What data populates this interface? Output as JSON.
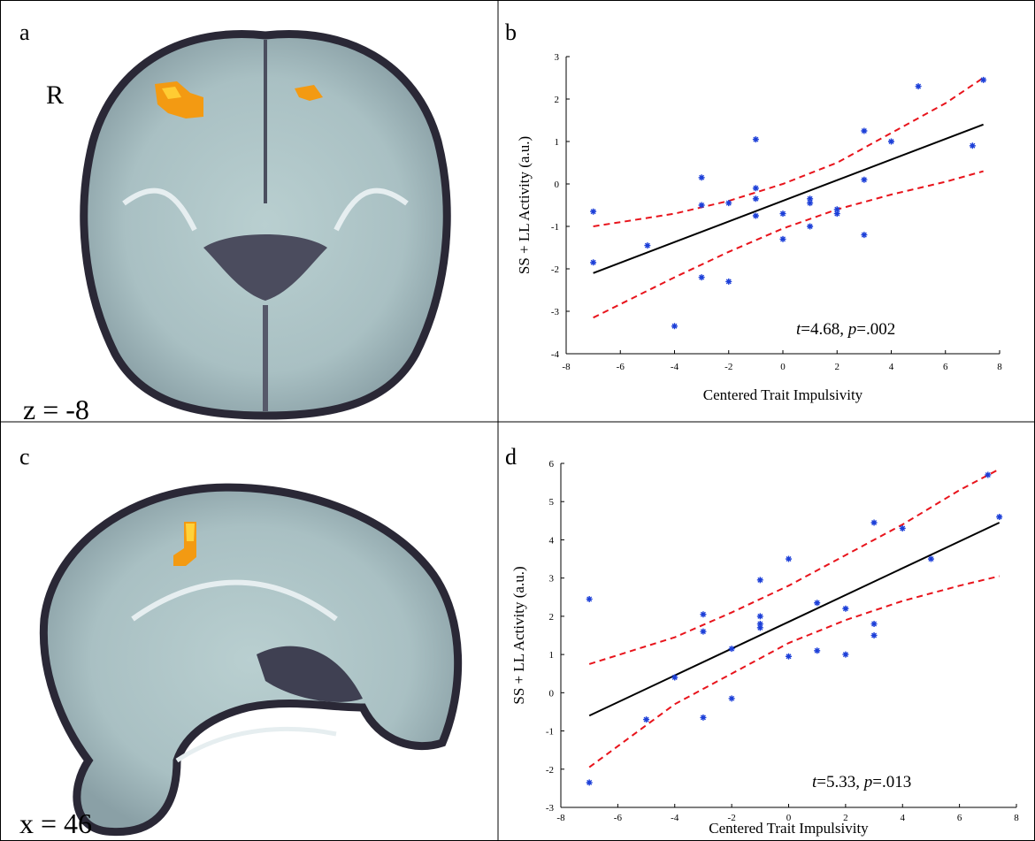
{
  "panel_labels": [
    "a",
    "b",
    "c",
    "d"
  ],
  "brain_labels": {
    "side": "R",
    "slice_a": "z = -8",
    "slice_c": "x = 46"
  },
  "chart_data": [
    {
      "type": "scatter",
      "xlabel": "Centered Trait Impulsivity",
      "ylabel": "SS + LL Activity (a.u.)",
      "annotation_parts": [
        "t",
        "=4.68, ",
        "p",
        "=.002"
      ],
      "xlim": [
        -8,
        8
      ],
      "ylim": [
        -4,
        3
      ],
      "xticks": [
        -8,
        -6,
        -4,
        -2,
        0,
        2,
        4,
        6,
        8
      ],
      "yticks": [
        -4,
        -3,
        -2,
        -1,
        0,
        1,
        2,
        3
      ],
      "points": {
        "color": "#1c3fd8",
        "x": [
          -7,
          -7,
          -5,
          -4,
          -3,
          -3,
          -3,
          -2,
          -2,
          -1,
          -1,
          -1,
          -1,
          0,
          0,
          1,
          1,
          1,
          2,
          2,
          3,
          3,
          3,
          4,
          5,
          7,
          7.4
        ],
        "values": [
          -0.65,
          -1.85,
          -1.45,
          -3.35,
          0.15,
          -0.5,
          -2.2,
          -0.45,
          -2.3,
          1.05,
          -0.1,
          -0.35,
          -0.75,
          -0.7,
          -1.3,
          -0.35,
          -0.45,
          -1.0,
          -0.6,
          -0.7,
          1.25,
          0.1,
          -1.2,
          1.0,
          2.3,
          0.9,
          2.45
        ]
      },
      "fit": {
        "color": "#000000",
        "x": [
          -7,
          7.4
        ],
        "values": [
          -2.1,
          1.4
        ]
      },
      "ci_upper": {
        "color": "#e8141c",
        "x": [
          -7,
          -4,
          -2,
          0,
          2,
          4,
          6,
          7.4
        ],
        "values": [
          -1.0,
          -0.7,
          -0.4,
          0.0,
          0.5,
          1.2,
          1.9,
          2.5
        ]
      },
      "ci_lower": {
        "color": "#e8141c",
        "x": [
          -7,
          -4,
          -2,
          0,
          2,
          4,
          6,
          7.4
        ],
        "values": [
          -3.15,
          -2.2,
          -1.6,
          -1.05,
          -0.6,
          -0.25,
          0.05,
          0.3
        ]
      }
    },
    {
      "type": "scatter",
      "xlabel": "Centered Trait Impulsivity",
      "ylabel": "SS + LL Activity (a.u.)",
      "annotation_parts": [
        "t",
        "=5.33, ",
        "p",
        "=.013"
      ],
      "xlim": [
        -8,
        8
      ],
      "ylim": [
        -3,
        6
      ],
      "xticks": [
        -8,
        -6,
        -4,
        -2,
        0,
        2,
        4,
        6,
        8
      ],
      "yticks": [
        -3,
        -2,
        -1,
        0,
        1,
        2,
        3,
        4,
        5,
        6
      ],
      "points": {
        "color": "#1c3fd8",
        "x": [
          -7,
          -7,
          -5,
          -4,
          -3,
          -3,
          -3,
          -2,
          -2,
          -1,
          -1,
          -1,
          -1,
          0,
          0,
          1,
          1,
          2,
          2,
          3,
          3,
          3,
          4,
          5,
          7,
          7.4
        ],
        "values": [
          2.45,
          -2.35,
          -0.7,
          0.4,
          2.05,
          1.6,
          -0.65,
          1.15,
          -0.15,
          2.95,
          2.0,
          1.8,
          1.7,
          3.5,
          0.95,
          2.35,
          1.1,
          2.2,
          1.0,
          4.45,
          1.8,
          1.5,
          4.3,
          3.5,
          5.7,
          4.6
        ]
      },
      "fit": {
        "color": "#000000",
        "x": [
          -7,
          7.4
        ],
        "values": [
          -0.6,
          4.45
        ]
      },
      "ci_upper": {
        "color": "#e8141c",
        "x": [
          -7,
          -4,
          -2,
          0,
          2,
          4,
          6,
          7.4
        ],
        "values": [
          0.75,
          1.45,
          2.1,
          2.8,
          3.6,
          4.4,
          5.3,
          5.85
        ]
      },
      "ci_lower": {
        "color": "#e8141c",
        "x": [
          -7,
          -4,
          -2,
          0,
          2,
          4,
          6,
          7.4
        ],
        "values": [
          -1.95,
          -0.3,
          0.5,
          1.3,
          1.9,
          2.4,
          2.8,
          3.05
        ]
      }
    }
  ]
}
